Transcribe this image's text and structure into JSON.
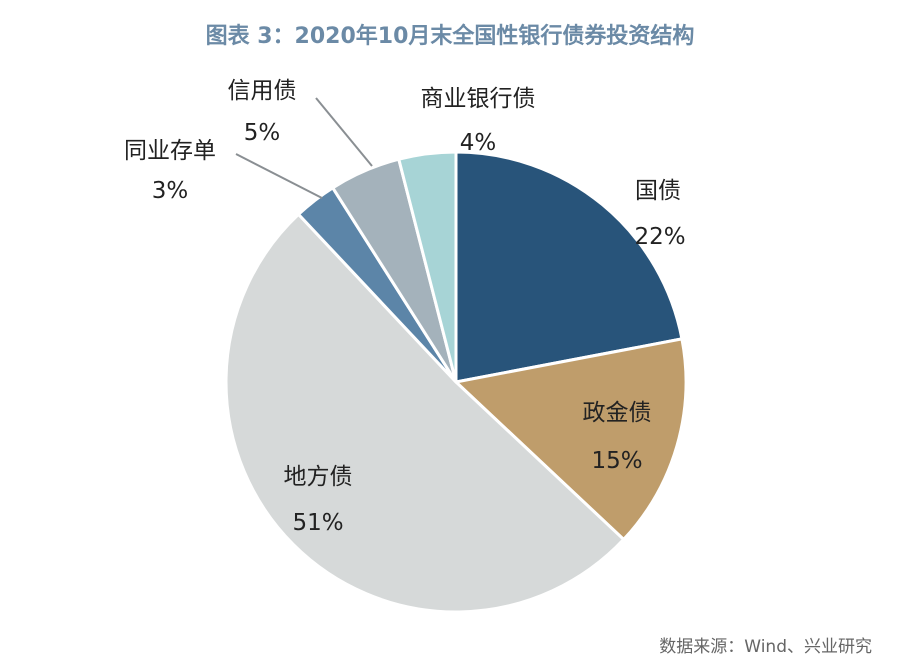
{
  "title": "图表 3：2020年10月末全国性银行债券投资结构",
  "source": "数据来源：Wind、兴业研究",
  "chart_data": {
    "type": "pie",
    "title": "图表 3：2020年10月末全国性银行债券投资结构",
    "slices": [
      {
        "name": "国债",
        "value": 22,
        "label": "22%",
        "color": "#28547a"
      },
      {
        "name": "政金债",
        "value": 15,
        "label": "15%",
        "color": "#bf9d6b"
      },
      {
        "name": "地方债",
        "value": 51,
        "label": "51%",
        "color": "#d6d9d9"
      },
      {
        "name": "同业存单",
        "value": 3,
        "label": "3%",
        "color": "#5c85a8"
      },
      {
        "name": "信用债",
        "value": 5,
        "label": "5%",
        "color": "#a4b2bb"
      },
      {
        "name": "商业银行债",
        "value": 4,
        "label": "4%",
        "color": "#a7d4d6"
      }
    ]
  }
}
